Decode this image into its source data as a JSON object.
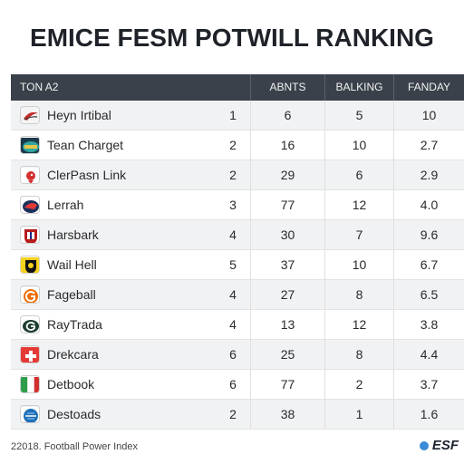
{
  "header": {
    "title": "EMICE FESM POTWILL RANKING"
  },
  "table": {
    "columns": [
      "TON A2",
      "ABNTS",
      "BALKING",
      "FANDAY"
    ],
    "rows": [
      {
        "team": "Heyn Irtibal",
        "rank": "1",
        "abnts": "6",
        "balking": "5",
        "fanday": "10",
        "logo": "red-swoosh-icon"
      },
      {
        "team": "Tean Charget",
        "rank": "2",
        "abnts": "16",
        "balking": "10",
        "fanday": "2.7",
        "logo": "teal-oval-icon"
      },
      {
        "team": "ClerPasn Link",
        "rank": "2",
        "abnts": "29",
        "balking": "6",
        "fanday": "2.9",
        "logo": "red-bird-icon"
      },
      {
        "team": "Lerrah",
        "rank": "3",
        "abnts": "77",
        "balking": "12",
        "fanday": "4.0",
        "logo": "navy-red-wing-icon"
      },
      {
        "team": "Harsbark",
        "rank": "4",
        "abnts": "30",
        "balking": "7",
        "fanday": "9.6",
        "logo": "red-shield-icon"
      },
      {
        "team": "Wail Hell",
        "rank": "5",
        "abnts": "37",
        "balking": "10",
        "fanday": "6.7",
        "logo": "yellow-black-shield-icon"
      },
      {
        "team": "Fageball",
        "rank": "4",
        "abnts": "27",
        "balking": "8",
        "fanday": "6.5",
        "logo": "orange-g-icon"
      },
      {
        "team": "RayTrada",
        "rank": "4",
        "abnts": "13",
        "balking": "12",
        "fanday": "3.8",
        "logo": "green-g-oval-icon"
      },
      {
        "team": "Drekcara",
        "rank": "6",
        "abnts": "25",
        "balking": "8",
        "fanday": "4.4",
        "logo": "red-cross-icon"
      },
      {
        "team": "Detbook",
        "rank": "6",
        "abnts": "77",
        "balking": "2",
        "fanday": "3.7",
        "logo": "italy-stripes-icon"
      },
      {
        "team": "Destoads",
        "rank": "2",
        "abnts": "38",
        "balking": "1",
        "fanday": "1.6",
        "logo": "blue-disc-icon"
      }
    ]
  },
  "footer": {
    "source": "22018. Football Power Index",
    "brand": "ESF"
  },
  "colors": {
    "header_bg": "#3a414b",
    "row_alt": "#f1f2f4",
    "brand_dot": "#3a8ad6"
  }
}
